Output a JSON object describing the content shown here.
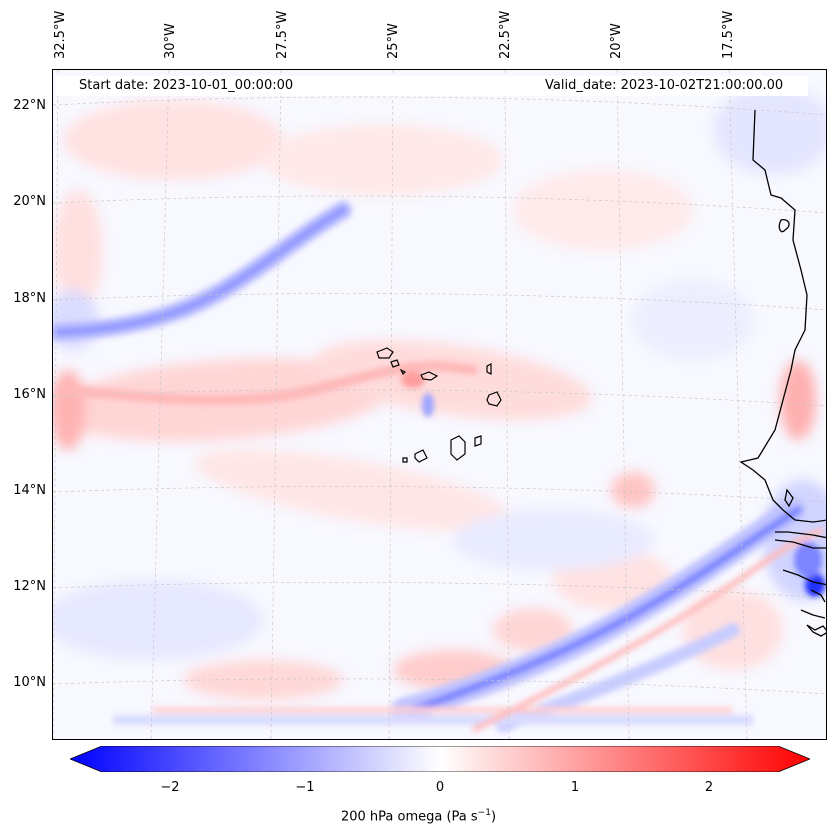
{
  "header": {
    "start_date": "Start date: 2023-10-01_00:00:00",
    "valid_date": "Valid_date: 2023-10-02T21:00:00.00"
  },
  "lon_labels": [
    "32.5°W",
    "30°W",
    "27.5°W",
    "25°W",
    "22.5°W",
    "20°W",
    "17.5°W"
  ],
  "lat_labels": [
    "22°N",
    "20°N",
    "18°N",
    "16°N",
    "14°N",
    "12°N",
    "10°N"
  ],
  "colorbar": {
    "ticks": [
      "−2",
      "−1",
      "0",
      "1",
      "2"
    ],
    "label_main": "200 hPa omega (Pa s",
    "label_sup": "−1",
    "label_close": ")",
    "min_color": "#0000ff",
    "mid_color": "#ffffff",
    "max_color": "#ff0000"
  },
  "colors": {
    "coast": "#000000",
    "grid": "#c8c8c8"
  }
}
